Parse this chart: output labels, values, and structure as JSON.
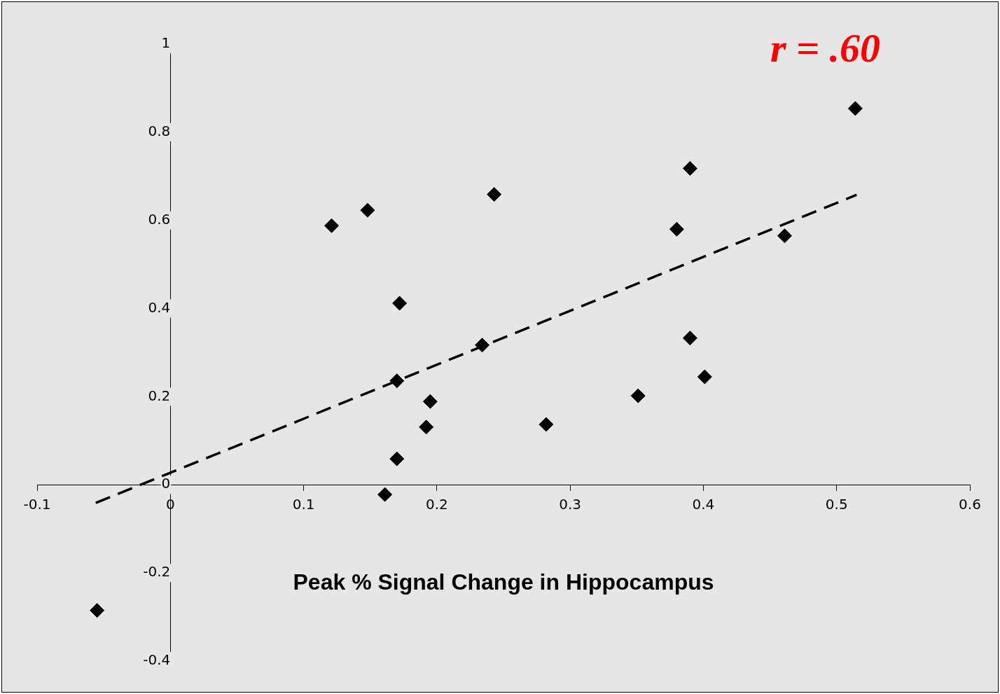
{
  "chart_data": {
    "type": "scatter",
    "xlabel": "Peak % Signal Change in Hippocampus",
    "annotations": [
      "r = .60"
    ],
    "xlim": [
      -0.1,
      0.6
    ],
    "xticks": [
      -0.1,
      0,
      0.1,
      0.2,
      0.3,
      0.4,
      0.5,
      0.6
    ],
    "ylim": [
      -0.4,
      1
    ],
    "yticks": [
      -0.4,
      -0.2,
      0,
      0.2,
      0.4,
      0.6,
      0.8,
      1
    ],
    "grid": false,
    "legend": false,
    "marker": "diamond",
    "series": [
      {
        "color": "#000000",
        "x": [
          -0.055,
          0.121,
          0.148,
          0.172,
          0.17,
          0.17,
          0.161,
          0.192,
          0.195,
          0.234,
          0.243,
          0.282,
          0.351,
          0.38,
          0.39,
          0.39,
          0.401,
          0.461,
          0.514
        ],
        "values": [
          -0.285,
          0.588,
          0.623,
          0.412,
          0.236,
          0.059,
          -0.022,
          0.131,
          0.189,
          0.317,
          0.659,
          0.137,
          0.202,
          0.58,
          0.718,
          0.333,
          0.245,
          0.565,
          0.854
        ]
      },
      {
        "type": "line",
        "color": "#000000",
        "line_style": "dashed",
        "marker": "none",
        "x": [
          -0.056,
          0.515
        ],
        "values": [
          -0.041,
          0.658
        ]
      }
    ]
  }
}
